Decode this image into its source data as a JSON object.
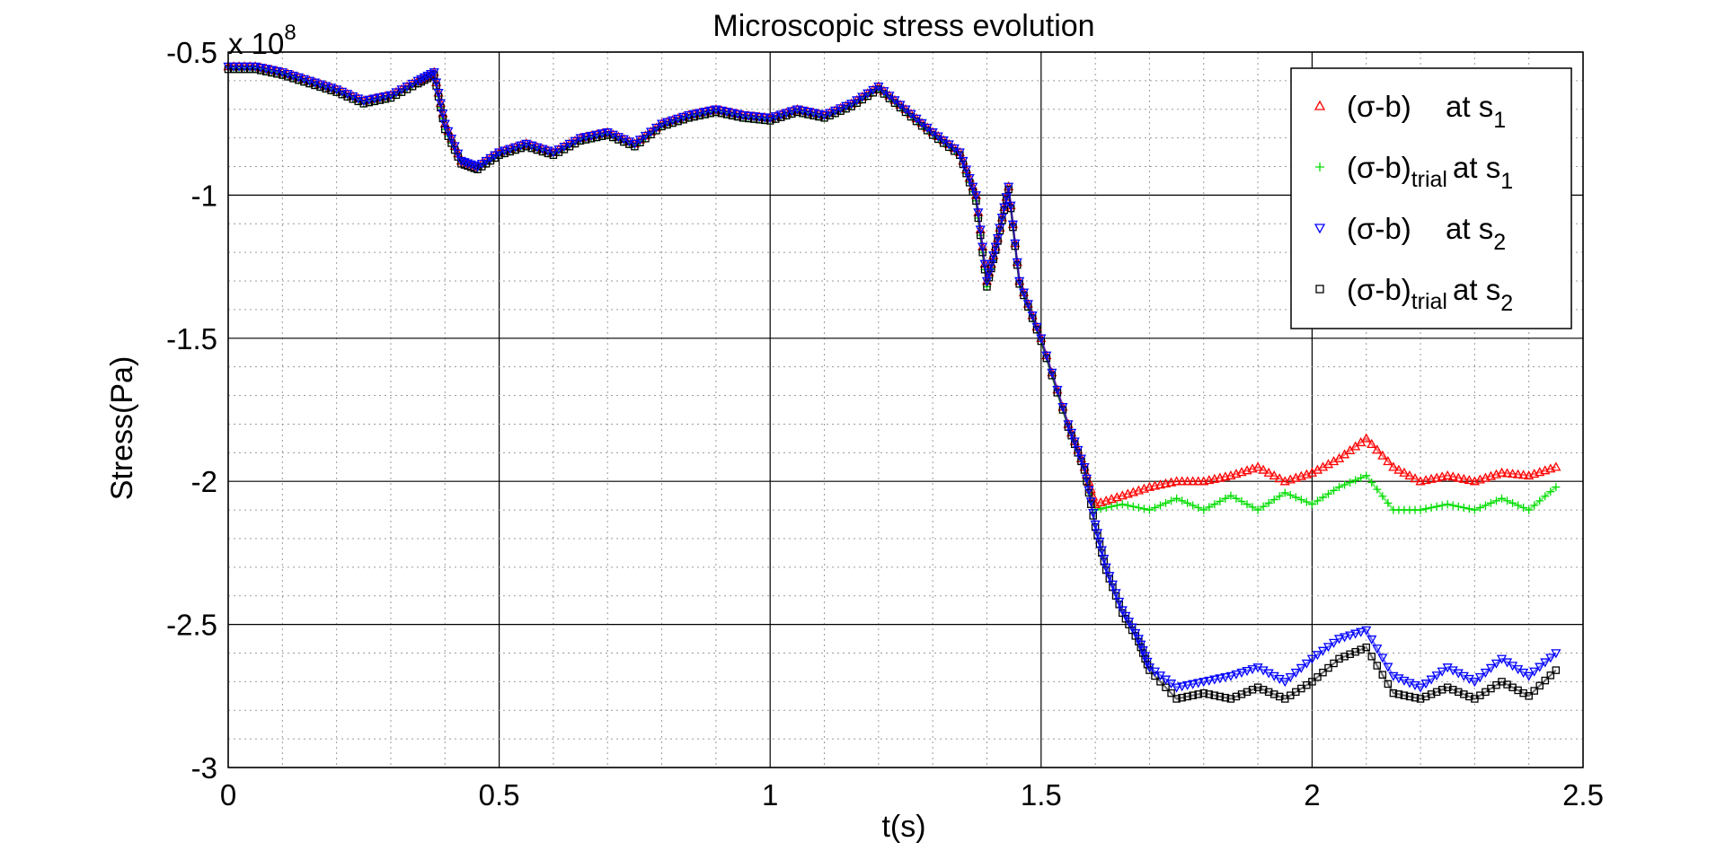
{
  "chart_data": {
    "type": "scatter",
    "title": "Microscopic stress evolution",
    "xlabel": "t(s)",
    "ylabel": "Stress(Pa)",
    "y_exponent_label": {
      "base": "x 10",
      "power": "8"
    },
    "xlim": [
      0,
      2.5
    ],
    "ylim": [
      -3,
      -0.5
    ],
    "y_scale_factor": 100000000,
    "x_ticks": [
      "0",
      "0.5",
      "1",
      "1.5",
      "2",
      "2.5"
    ],
    "y_ticks": [
      "-0.5",
      "-1",
      "-1.5",
      "-2",
      "-2.5",
      "-3"
    ],
    "grid": {
      "major": true,
      "minor": true,
      "minor_x_step": 0.1,
      "minor_y_step": 0.1
    },
    "legend_position": "top-right",
    "series": [
      {
        "name": "(σ-b) at s1",
        "label_main": "(σ-b)",
        "label_sub": "",
        "label_at": "at s",
        "label_index": "1",
        "color": "#ff0000",
        "marker": "triangle-up",
        "x": [
          0,
          0.05,
          0.1,
          0.15,
          0.2,
          0.25,
          0.3,
          0.35,
          0.38,
          0.4,
          0.43,
          0.46,
          0.5,
          0.55,
          0.6,
          0.65,
          0.7,
          0.75,
          0.8,
          0.85,
          0.9,
          0.95,
          1.0,
          1.05,
          1.1,
          1.15,
          1.2,
          1.25,
          1.3,
          1.35,
          1.38,
          1.4,
          1.42,
          1.44,
          1.46,
          1.5,
          1.55,
          1.58,
          1.6,
          1.65,
          1.7,
          1.75,
          1.8,
          1.85,
          1.9,
          1.95,
          2.0,
          2.05,
          2.1,
          2.15,
          2.2,
          2.25,
          2.3,
          2.35,
          2.4,
          2.45
        ],
        "y": [
          -0.55,
          -0.55,
          -0.57,
          -0.6,
          -0.63,
          -0.67,
          -0.65,
          -0.6,
          -0.57,
          -0.75,
          -0.88,
          -0.9,
          -0.85,
          -0.82,
          -0.85,
          -0.8,
          -0.78,
          -0.82,
          -0.75,
          -0.72,
          -0.7,
          -0.72,
          -0.73,
          -0.7,
          -0.72,
          -0.68,
          -0.62,
          -0.7,
          -0.78,
          -0.85,
          -1.0,
          -1.3,
          -1.15,
          -0.97,
          -1.3,
          -1.5,
          -1.8,
          -1.95,
          -2.08,
          -2.05,
          -2.02,
          -2.0,
          -2.0,
          -1.98,
          -1.95,
          -2.0,
          -1.97,
          -1.92,
          -1.85,
          -1.95,
          -2.0,
          -1.98,
          -2.0,
          -1.97,
          -1.98,
          -1.95
        ]
      },
      {
        "name": "(σ-b)trial at s1",
        "label_main": "(σ-b)",
        "label_sub": "trial",
        "label_at": "at s",
        "label_index": "1",
        "color": "#00dd00",
        "marker": "plus",
        "x": [
          0,
          0.05,
          0.1,
          0.15,
          0.2,
          0.25,
          0.3,
          0.35,
          0.38,
          0.4,
          0.43,
          0.46,
          0.5,
          0.55,
          0.6,
          0.65,
          0.7,
          0.75,
          0.8,
          0.85,
          0.9,
          0.95,
          1.0,
          1.05,
          1.1,
          1.15,
          1.2,
          1.25,
          1.3,
          1.35,
          1.38,
          1.4,
          1.42,
          1.44,
          1.46,
          1.5,
          1.55,
          1.58,
          1.6,
          1.65,
          1.7,
          1.75,
          1.8,
          1.85,
          1.9,
          1.95,
          2.0,
          2.05,
          2.1,
          2.15,
          2.2,
          2.25,
          2.3,
          2.35,
          2.4,
          2.45
        ],
        "y": [
          -0.56,
          -0.56,
          -0.58,
          -0.61,
          -0.64,
          -0.68,
          -0.66,
          -0.61,
          -0.58,
          -0.77,
          -0.89,
          -0.91,
          -0.86,
          -0.83,
          -0.86,
          -0.81,
          -0.79,
          -0.83,
          -0.76,
          -0.73,
          -0.71,
          -0.73,
          -0.74,
          -0.71,
          -0.73,
          -0.69,
          -0.63,
          -0.71,
          -0.79,
          -0.86,
          -1.02,
          -1.32,
          -1.16,
          -0.98,
          -1.31,
          -1.51,
          -1.81,
          -1.96,
          -2.1,
          -2.08,
          -2.1,
          -2.06,
          -2.1,
          -2.05,
          -2.1,
          -2.04,
          -2.08,
          -2.02,
          -1.98,
          -2.1,
          -2.1,
          -2.08,
          -2.1,
          -2.06,
          -2.1,
          -2.02
        ]
      },
      {
        "name": "(σ-b) at s2",
        "label_main": "(σ-b)",
        "label_sub": "",
        "label_at": "at s",
        "label_index": "2",
        "color": "#0000ff",
        "marker": "triangle-down",
        "x": [
          0,
          0.05,
          0.1,
          0.15,
          0.2,
          0.25,
          0.3,
          0.35,
          0.38,
          0.4,
          0.43,
          0.46,
          0.5,
          0.55,
          0.6,
          0.65,
          0.7,
          0.75,
          0.8,
          0.85,
          0.9,
          0.95,
          1.0,
          1.05,
          1.1,
          1.15,
          1.2,
          1.25,
          1.3,
          1.35,
          1.38,
          1.4,
          1.42,
          1.44,
          1.46,
          1.5,
          1.55,
          1.58,
          1.6,
          1.62,
          1.65,
          1.68,
          1.7,
          1.75,
          1.8,
          1.85,
          1.9,
          1.95,
          2.0,
          2.05,
          2.1,
          2.15,
          2.2,
          2.25,
          2.3,
          2.35,
          2.4,
          2.45
        ],
        "y": [
          -0.55,
          -0.55,
          -0.57,
          -0.6,
          -0.63,
          -0.67,
          -0.65,
          -0.6,
          -0.57,
          -0.75,
          -0.88,
          -0.9,
          -0.85,
          -0.82,
          -0.85,
          -0.8,
          -0.78,
          -0.82,
          -0.75,
          -0.72,
          -0.7,
          -0.72,
          -0.73,
          -0.7,
          -0.72,
          -0.68,
          -0.62,
          -0.7,
          -0.78,
          -0.85,
          -1.0,
          -1.3,
          -1.15,
          -0.97,
          -1.3,
          -1.5,
          -1.8,
          -1.95,
          -2.15,
          -2.3,
          -2.45,
          -2.55,
          -2.65,
          -2.72,
          -2.7,
          -2.68,
          -2.65,
          -2.7,
          -2.62,
          -2.55,
          -2.52,
          -2.68,
          -2.72,
          -2.65,
          -2.7,
          -2.62,
          -2.68,
          -2.6
        ]
      },
      {
        "name": "(σ-b)trial at s2",
        "label_main": "(σ-b)",
        "label_sub": "trial",
        "label_at": "at s",
        "label_index": "2",
        "color": "#000000",
        "marker": "square",
        "x": [
          0,
          0.05,
          0.1,
          0.15,
          0.2,
          0.25,
          0.3,
          0.35,
          0.38,
          0.4,
          0.43,
          0.46,
          0.5,
          0.55,
          0.6,
          0.65,
          0.7,
          0.75,
          0.8,
          0.85,
          0.9,
          0.95,
          1.0,
          1.05,
          1.1,
          1.15,
          1.2,
          1.25,
          1.3,
          1.35,
          1.38,
          1.4,
          1.42,
          1.44,
          1.46,
          1.5,
          1.55,
          1.58,
          1.6,
          1.62,
          1.65,
          1.68,
          1.7,
          1.75,
          1.8,
          1.85,
          1.9,
          1.95,
          2.0,
          2.05,
          2.1,
          2.15,
          2.2,
          2.25,
          2.3,
          2.35,
          2.4,
          2.45
        ],
        "y": [
          -0.56,
          -0.56,
          -0.58,
          -0.61,
          -0.64,
          -0.68,
          -0.66,
          -0.61,
          -0.58,
          -0.77,
          -0.89,
          -0.91,
          -0.86,
          -0.83,
          -0.86,
          -0.81,
          -0.79,
          -0.83,
          -0.76,
          -0.73,
          -0.71,
          -0.73,
          -0.74,
          -0.71,
          -0.73,
          -0.69,
          -0.63,
          -0.71,
          -0.79,
          -0.86,
          -1.02,
          -1.32,
          -1.16,
          -0.98,
          -1.31,
          -1.51,
          -1.81,
          -1.96,
          -2.16,
          -2.31,
          -2.46,
          -2.56,
          -2.66,
          -2.76,
          -2.74,
          -2.76,
          -2.72,
          -2.76,
          -2.7,
          -2.62,
          -2.58,
          -2.74,
          -2.76,
          -2.72,
          -2.76,
          -2.7,
          -2.75,
          -2.66
        ]
      }
    ]
  }
}
